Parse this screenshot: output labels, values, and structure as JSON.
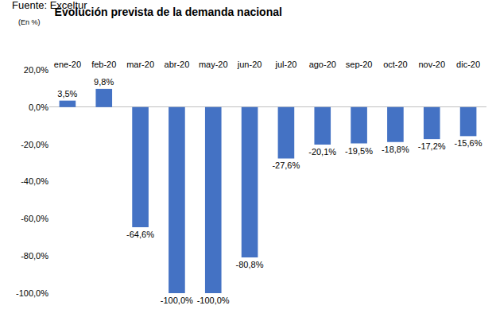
{
  "chart_data": {
    "type": "bar",
    "title": "Evolución prevista de la demanda nacional",
    "subtitle": "Fuente: Exceltur",
    "ylabel": "(En %)",
    "categories": [
      "ene-20",
      "feb-20",
      "mar-20",
      "abr-20",
      "may-20",
      "jun-20",
      "jul-20",
      "ago-20",
      "sep-20",
      "oct-20",
      "nov-20",
      "dic-20"
    ],
    "values": [
      3.5,
      9.8,
      -64.6,
      -100,
      -100,
      -80.8,
      -27.6,
      -20.1,
      -19.5,
      -18.8,
      -17.2,
      -15.6
    ],
    "value_labels": [
      "3,5%",
      "9,8%",
      "-64,6%",
      "-100,0%",
      "-100,0%",
      "-80,8%",
      "-27,6%",
      "-20,1%",
      "-19,5%",
      "-18,8%",
      "-17,2%",
      "-15,6%"
    ],
    "color": "#4472c4",
    "ylim": [
      -100,
      20
    ],
    "yticks": [
      {
        "value": 20,
        "label": "20,0%"
      },
      {
        "value": 0,
        "label": "0,0%"
      },
      {
        "value": -20,
        "label": "-20,0%"
      },
      {
        "value": -40,
        "label": "-40,0%"
      },
      {
        "value": -60,
        "label": "-60,0%"
      },
      {
        "value": -80,
        "label": "-80,0%"
      },
      {
        "value": -100,
        "label": "-100,0%"
      }
    ],
    "grid": false,
    "data_labels": true
  }
}
